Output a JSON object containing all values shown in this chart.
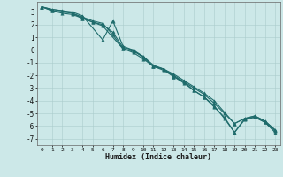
{
  "xlabel": "Humidex (Indice chaleur)",
  "ylabel": "",
  "xlim": [
    -0.5,
    23.5
  ],
  "ylim": [
    -7.5,
    3.8
  ],
  "yticks": [
    3,
    2,
    1,
    0,
    -1,
    -2,
    -3,
    -4,
    -5,
    -6,
    -7
  ],
  "xticks": [
    0,
    1,
    2,
    3,
    4,
    5,
    6,
    7,
    8,
    9,
    10,
    11,
    12,
    13,
    14,
    15,
    16,
    17,
    18,
    19,
    20,
    21,
    22,
    23
  ],
  "bg_color": "#cce8e8",
  "line_color": "#1e6b6b",
  "grid_color": "#aacccc",
  "lines": [
    {
      "x": [
        0,
        1,
        3,
        4,
        6,
        7,
        8,
        9,
        10,
        11,
        12,
        13,
        14,
        15,
        16,
        17,
        18,
        19,
        20,
        21,
        22,
        23
      ],
      "y": [
        3.4,
        3.2,
        3.0,
        2.7,
        0.8,
        2.3,
        0.3,
        0.0,
        -0.5,
        -1.3,
        -1.5,
        -2.1,
        -2.5,
        -3.2,
        -3.7,
        -4.4,
        -5.4,
        -6.5,
        -5.5,
        -5.3,
        -5.7,
        -6.5
      ]
    },
    {
      "x": [
        0,
        1,
        3,
        4,
        5,
        6,
        7,
        8,
        9,
        10,
        11,
        12,
        13,
        14,
        15,
        16,
        17,
        18,
        19,
        20,
        21,
        22,
        23
      ],
      "y": [
        3.4,
        3.1,
        2.9,
        2.5,
        2.2,
        2.0,
        1.4,
        0.2,
        0.0,
        -0.6,
        -1.3,
        -1.5,
        -2.0,
        -2.5,
        -3.0,
        -3.5,
        -4.2,
        -5.0,
        -5.8,
        -5.4,
        -5.2,
        -5.6,
        -6.3
      ]
    },
    {
      "x": [
        0,
        1,
        2,
        3,
        4,
        5,
        6,
        7,
        8,
        9,
        10,
        11,
        12,
        13,
        14,
        15,
        16,
        17,
        18,
        19,
        20,
        21,
        22,
        23
      ],
      "y": [
        3.4,
        3.2,
        3.1,
        2.9,
        2.6,
        2.3,
        2.1,
        1.2,
        0.1,
        -0.2,
        -0.7,
        -1.3,
        -1.6,
        -2.1,
        -2.6,
        -3.2,
        -3.7,
        -4.5,
        -5.3,
        -6.5,
        -5.4,
        -5.3,
        -5.7,
        -6.4
      ]
    },
    {
      "x": [
        0,
        1,
        2,
        3,
        4,
        5,
        6,
        8,
        9,
        10,
        11,
        12,
        13,
        14,
        15,
        16,
        17,
        18,
        19,
        20,
        21,
        22,
        23
      ],
      "y": [
        3.4,
        3.1,
        2.9,
        2.8,
        2.5,
        2.2,
        1.9,
        0.1,
        -0.1,
        -0.5,
        -1.2,
        -1.5,
        -1.9,
        -2.4,
        -2.9,
        -3.4,
        -4.0,
        -4.9,
        -5.8,
        -5.4,
        -5.2,
        -5.6,
        -6.3
      ]
    }
  ]
}
